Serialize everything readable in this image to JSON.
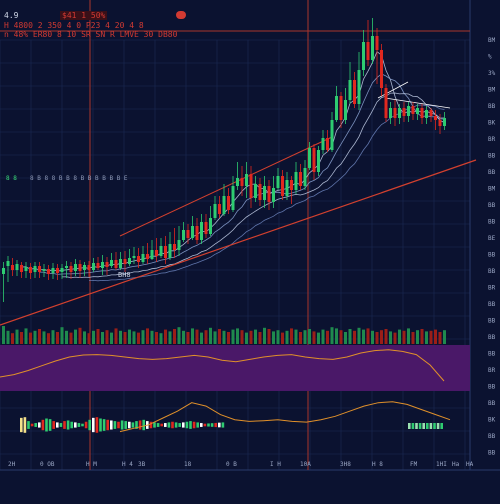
{
  "header": {
    "row1_left": "4.9",
    "row1_mid": "$41 1 50%",
    "row2": "H  4800 2 350 4 0  P23  4  20 4  8",
    "row3": "n  48%  ER80   8 10 SR   SN  R  LMVE 30  DB80"
  },
  "annotations": {
    "green_label": "8 8",
    "info_row": "8 B     8     8 B  B 8    B B B  B   B B   E",
    "mid_label": "BH8"
  },
  "axis": {
    "right_ticks": [
      "BM",
      "%",
      "3%",
      "BM",
      "BB",
      "BK",
      "BR",
      "BB",
      "BB",
      "BM",
      "BB",
      "BB",
      "BE",
      "BB",
      "BB",
      "BR",
      "BB",
      "BB",
      "BB",
      "BB",
      "BR",
      "BB",
      "BB",
      "BK",
      "BB",
      "BB"
    ],
    "bottom_ticks": [
      "2H",
      "0 OB",
      "H M",
      "H 4",
      "3B",
      "18",
      "0 B",
      "I H",
      "10A",
      "3H8",
      "H 8",
      "FM",
      "1HI",
      "Ha",
      "HA"
    ]
  },
  "colors": {
    "background": "#0b1230",
    "up": "#2ecc71",
    "down": "#e0281f",
    "indicator_band": "#4a1868",
    "oscillator": "#e0902a",
    "ma": "#c8d4ec",
    "trend": "#d2402e"
  },
  "chart_data": {
    "type": "candlestick",
    "candles": [
      [
        0,
        274,
        268,
        302,
        262
      ],
      [
        1,
        266,
        261,
        282,
        256
      ],
      [
        2,
        265,
        270,
        276,
        258
      ],
      [
        3,
        270,
        264,
        276,
        260
      ],
      [
        4,
        265,
        272,
        278,
        262
      ],
      [
        5,
        271,
        267,
        278,
        262
      ],
      [
        6,
        267,
        273,
        279,
        263
      ],
      [
        7,
        272,
        266,
        278,
        262
      ],
      [
        8,
        266,
        272,
        278,
        262
      ],
      [
        9,
        271,
        269,
        277,
        264
      ],
      [
        10,
        269,
        274,
        280,
        265
      ],
      [
        11,
        273,
        268,
        279,
        263
      ],
      [
        12,
        268,
        273,
        280,
        264
      ],
      [
        13,
        272,
        268,
        279,
        264
      ],
      [
        14,
        268,
        266,
        278,
        261
      ],
      [
        15,
        266,
        272,
        279,
        262
      ],
      [
        16,
        271,
        264,
        276,
        259
      ],
      [
        17,
        264,
        271,
        278,
        260
      ],
      [
        18,
        270,
        265,
        276,
        262
      ],
      [
        19,
        265,
        270,
        277,
        261
      ],
      [
        20,
        270,
        263,
        272,
        258
      ],
      [
        21,
        263,
        268,
        270,
        257
      ],
      [
        22,
        268,
        262,
        275,
        255
      ],
      [
        23,
        262,
        267,
        275,
        257
      ],
      [
        24,
        266,
        260,
        268,
        253
      ],
      [
        25,
        260,
        268,
        270,
        252
      ],
      [
        26,
        268,
        259,
        270,
        252
      ],
      [
        27,
        259,
        264,
        272,
        251
      ],
      [
        28,
        264,
        258,
        266,
        249
      ],
      [
        29,
        258,
        256,
        264,
        247
      ],
      [
        30,
        256,
        262,
        268,
        248
      ],
      [
        31,
        262,
        254,
        264,
        246
      ],
      [
        32,
        254,
        259,
        264,
        243
      ],
      [
        33,
        259,
        250,
        260,
        240
      ],
      [
        34,
        250,
        256,
        262,
        238
      ],
      [
        35,
        256,
        246,
        258,
        238
      ],
      [
        36,
        246,
        258,
        264,
        236
      ],
      [
        37,
        258,
        244,
        260,
        232
      ],
      [
        38,
        244,
        250,
        258,
        228
      ],
      [
        39,
        250,
        240,
        256,
        226
      ],
      [
        40,
        240,
        230,
        242,
        222
      ],
      [
        41,
        230,
        238,
        244,
        224
      ],
      [
        42,
        238,
        226,
        240,
        216
      ],
      [
        43,
        226,
        240,
        244,
        218
      ],
      [
        44,
        240,
        222,
        244,
        214
      ],
      [
        45,
        222,
        234,
        238,
        214
      ],
      [
        46,
        234,
        218,
        236,
        206
      ],
      [
        47,
        218,
        204,
        220,
        196
      ],
      [
        48,
        204,
        214,
        218,
        196
      ],
      [
        49,
        214,
        196,
        216,
        184
      ],
      [
        50,
        196,
        210,
        214,
        188
      ],
      [
        51,
        210,
        186,
        212,
        176
      ],
      [
        52,
        186,
        178,
        190,
        162
      ],
      [
        53,
        178,
        186,
        196,
        166
      ],
      [
        54,
        186,
        174,
        198,
        162
      ],
      [
        55,
        174,
        198,
        208,
        166
      ],
      [
        56,
        198,
        184,
        202,
        176
      ],
      [
        57,
        184,
        200,
        206,
        178
      ],
      [
        58,
        200,
        186,
        208,
        176
      ],
      [
        59,
        186,
        202,
        210,
        180
      ],
      [
        60,
        202,
        188,
        208,
        176
      ],
      [
        61,
        188,
        176,
        190,
        168
      ],
      [
        62,
        176,
        196,
        200,
        170
      ],
      [
        63,
        196,
        180,
        200,
        172
      ],
      [
        64,
        180,
        190,
        204,
        176
      ],
      [
        65,
        190,
        172,
        194,
        162
      ],
      [
        66,
        172,
        186,
        190,
        164
      ],
      [
        67,
        186,
        168,
        190,
        160
      ],
      [
        68,
        168,
        148,
        170,
        142
      ],
      [
        69,
        148,
        172,
        180,
        144
      ],
      [
        70,
        172,
        150,
        176,
        146
      ],
      [
        71,
        150,
        138,
        154,
        130
      ],
      [
        72,
        138,
        150,
        152,
        130
      ],
      [
        73,
        150,
        120,
        152,
        112
      ],
      [
        74,
        120,
        96,
        122,
        86
      ],
      [
        75,
        96,
        120,
        128,
        92
      ],
      [
        76,
        120,
        100,
        124,
        88
      ],
      [
        77,
        100,
        80,
        104,
        62
      ],
      [
        78,
        80,
        104,
        108,
        72
      ],
      [
        79,
        104,
        70,
        110,
        52
      ],
      [
        80,
        70,
        42,
        76,
        30
      ],
      [
        81,
        42,
        60,
        66,
        20
      ],
      [
        82,
        60,
        36,
        64,
        18
      ],
      [
        83,
        36,
        50,
        84,
        28
      ],
      [
        84,
        50,
        88,
        96,
        44
      ],
      [
        85,
        88,
        118,
        122,
        84
      ],
      [
        86,
        118,
        108,
        124,
        102
      ],
      [
        87,
        108,
        118,
        126,
        100
      ],
      [
        88,
        118,
        108,
        124,
        104
      ],
      [
        89,
        108,
        116,
        122,
        102
      ],
      [
        90,
        116,
        106,
        122,
        102
      ],
      [
        91,
        106,
        114,
        120,
        102
      ],
      [
        92,
        114,
        108,
        120,
        104
      ],
      [
        93,
        108,
        118,
        124,
        104
      ],
      [
        94,
        118,
        110,
        124,
        106
      ],
      [
        95,
        110,
        116,
        122,
        108
      ],
      [
        96,
        116,
        120,
        130,
        110
      ],
      [
        97,
        120,
        126,
        134,
        114
      ],
      [
        98,
        126,
        118,
        130,
        112
      ]
    ],
    "volume": [
      30,
      22,
      18,
      24,
      20,
      26,
      19,
      22,
      25,
      21,
      18,
      23,
      20,
      28,
      22,
      19,
      24,
      27,
      21,
      18,
      22,
      25,
      20,
      23,
      19,
      26,
      22,
      20,
      24,
      21,
      19,
      23,
      26,
      22,
      20,
      18,
      24,
      21,
      25,
      28,
      22,
      20,
      26,
      24,
      19,
      23,
      27,
      21,
      25,
      22,
      20,
      24,
      26,
      23,
      19,
      22,
      24,
      20,
      27,
      25,
      21,
      23,
      19,
      22,
      26,
      24,
      20,
      23,
      25,
      21,
      19,
      24,
      22,
      28,
      26,
      23,
      20,
      25,
      22,
      27,
      24,
      26,
      22,
      20,
      23,
      25,
      21,
      19,
      24,
      22,
      26,
      20,
      23,
      25,
      21,
      22,
      24,
      20,
      23
    ],
    "oscillator": [
      0.3,
      0.36,
      0.46,
      0.58,
      0.7,
      0.8,
      0.85,
      0.86,
      0.84,
      0.8,
      0.76,
      0.74,
      0.76,
      0.8,
      0.84,
      0.8,
      0.72,
      0.68,
      0.74,
      0.8,
      0.84,
      0.86,
      0.8,
      0.76,
      0.74,
      0.8,
      0.9,
      0.96,
      0.98,
      0.94,
      0.86,
      0.6,
      0.2
    ],
    "macd_hist": [
      0.55,
      0.6,
      0.3,
      0.1,
      0.15,
      0.2,
      0.4,
      0.5,
      0.45,
      0.3,
      0.2,
      0.15,
      0.3,
      0.35,
      0.25,
      0.2,
      0.15,
      0.1,
      0.25,
      0.4,
      0.55,
      0.6,
      0.5,
      0.45,
      0.4,
      0.35,
      0.3,
      0.25,
      0.35,
      0.3,
      0.25,
      0.2,
      0.3,
      0.35,
      0.4,
      0.3,
      0.25,
      0.2,
      0.15,
      0.1,
      0.15,
      0.2,
      0.25,
      0.2,
      0.15,
      0.2,
      0.25,
      0.3,
      0.25,
      0.2,
      0.15,
      0.1,
      0.12,
      0.14,
      0.16,
      0.18,
      0.2
    ],
    "macd_line": [
      0.1,
      0.2,
      0.3,
      0.5,
      0.7,
      0.95,
      0.85,
      0.6,
      0.45,
      0.4,
      0.42,
      0.45,
      0.4,
      0.38,
      0.45,
      0.55,
      0.7,
      0.85,
      0.95,
      0.98,
      0.9,
      0.75,
      0.6,
      0.45
    ]
  }
}
